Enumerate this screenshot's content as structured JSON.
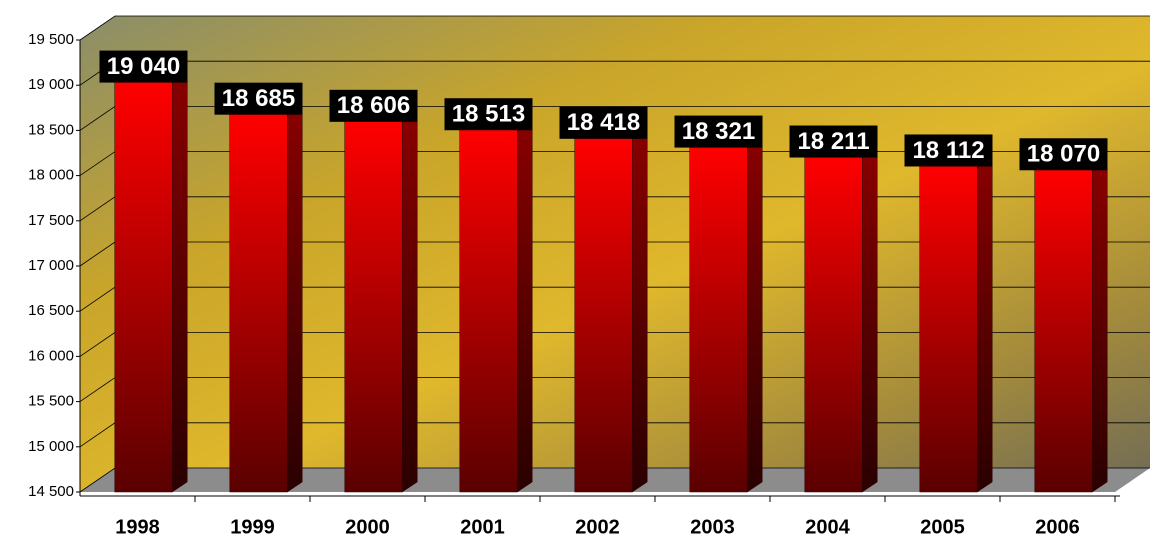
{
  "chart_data": {
    "type": "bar",
    "categories": [
      "1998",
      "1999",
      "2000",
      "2001",
      "2002",
      "2003",
      "2004",
      "2005",
      "2006"
    ],
    "values": [
      19040,
      18685,
      18606,
      18513,
      18418,
      18321,
      18211,
      18112,
      18070
    ],
    "value_labels": [
      "19 040",
      "18 685",
      "18 606",
      "18 513",
      "18 418",
      "18 321",
      "18 211",
      "18 112",
      "18 070"
    ],
    "color": "#ff0000",
    "ylim": [
      14500,
      19500
    ],
    "yticks": [
      {
        "value": 14500,
        "label": "14 500"
      },
      {
        "value": 15000,
        "label": "15 000"
      },
      {
        "value": 15500,
        "label": "15 500"
      },
      {
        "value": 16000,
        "label": "16 000"
      },
      {
        "value": 16500,
        "label": "16 500"
      },
      {
        "value": 17000,
        "label": "17 000"
      },
      {
        "value": 17500,
        "label": "17 500"
      },
      {
        "value": 18000,
        "label": "18 000"
      },
      {
        "value": 18500,
        "label": "18 500"
      },
      {
        "value": 19000,
        "label": "19 000"
      },
      {
        "value": 19500,
        "label": "19 500"
      }
    ],
    "grid": true
  }
}
